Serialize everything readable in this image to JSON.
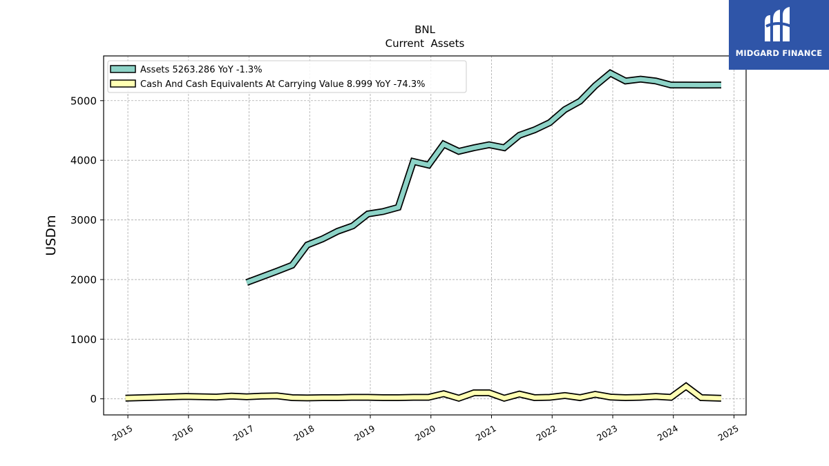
{
  "header": {
    "title": "BNL",
    "subtitle": "Current  Assets"
  },
  "brand": {
    "name": "MIDGARD FINANCE",
    "bg_color": "#2f55a8"
  },
  "chart_data": {
    "type": "line",
    "title": "BNL",
    "subtitle": "Current  Assets",
    "xlabel": "",
    "ylabel": "USDm",
    "xlim": [
      2014.6,
      2025.2
    ],
    "ylim": [
      -270,
      5750
    ],
    "x_ticks": [
      2015,
      2016,
      2017,
      2018,
      2019,
      2020,
      2021,
      2022,
      2023,
      2024,
      2025
    ],
    "x_tick_labels": [
      "2015",
      "2016",
      "2017",
      "2018",
      "2019",
      "2020",
      "2021",
      "2022",
      "2023",
      "2024",
      "2025"
    ],
    "y_ticks": [
      0,
      1000,
      2000,
      3000,
      4000,
      5000
    ],
    "y_tick_labels": [
      "0",
      "1000",
      "2000",
      "3000",
      "4000",
      "5000"
    ],
    "grid": true,
    "legend_placement": "top-left",
    "series": [
      {
        "name": "Assets  5263.286 YoY -1.3%",
        "color": "#8dd3c7",
        "x": [
          2016.96,
          2017.46,
          2017.71,
          2017.96,
          2018.21,
          2018.46,
          2018.71,
          2018.96,
          2019.21,
          2019.46,
          2019.71,
          2019.96,
          2020.21,
          2020.46,
          2020.71,
          2020.96,
          2021.21,
          2021.46,
          2021.71,
          2021.96,
          2022.21,
          2022.46,
          2022.71,
          2022.96,
          2023.21,
          2023.46,
          2023.71,
          2023.96,
          2024.21,
          2024.46,
          2024.79
        ],
        "y": [
          1950,
          2140,
          2240,
          2580,
          2680,
          2810,
          2900,
          3100,
          3140,
          3210,
          3980,
          3920,
          4270,
          4150,
          4210,
          4260,
          4210,
          4420,
          4510,
          4630,
          4850,
          4990,
          5250,
          5460,
          5330,
          5360,
          5330,
          5263,
          5263,
          5260,
          5263
        ]
      },
      {
        "name": "Cash And Cash Equivalents At Carrying Value  8.999 YoY -74.3%",
        "color": "#ffffb3",
        "x": [
          2014.96,
          2015.46,
          2015.96,
          2016.46,
          2016.71,
          2016.96,
          2017.21,
          2017.46,
          2017.71,
          2017.96,
          2018.21,
          2018.46,
          2018.71,
          2018.96,
          2019.21,
          2019.46,
          2019.71,
          2019.96,
          2020.21,
          2020.46,
          2020.71,
          2020.96,
          2021.21,
          2021.46,
          2021.71,
          2021.96,
          2022.21,
          2022.46,
          2022.71,
          2022.96,
          2023.21,
          2023.46,
          2023.71,
          2023.96,
          2024.21,
          2024.46,
          2024.79
        ],
        "y": [
          10,
          25,
          40,
          30,
          45,
          35,
          45,
          50,
          20,
          15,
          20,
          20,
          25,
          25,
          20,
          20,
          25,
          25,
          85,
          10,
          100,
          100,
          10,
          80,
          20,
          25,
          55,
          20,
          75,
          30,
          20,
          25,
          40,
          25,
          210,
          20,
          9
        ]
      }
    ]
  }
}
